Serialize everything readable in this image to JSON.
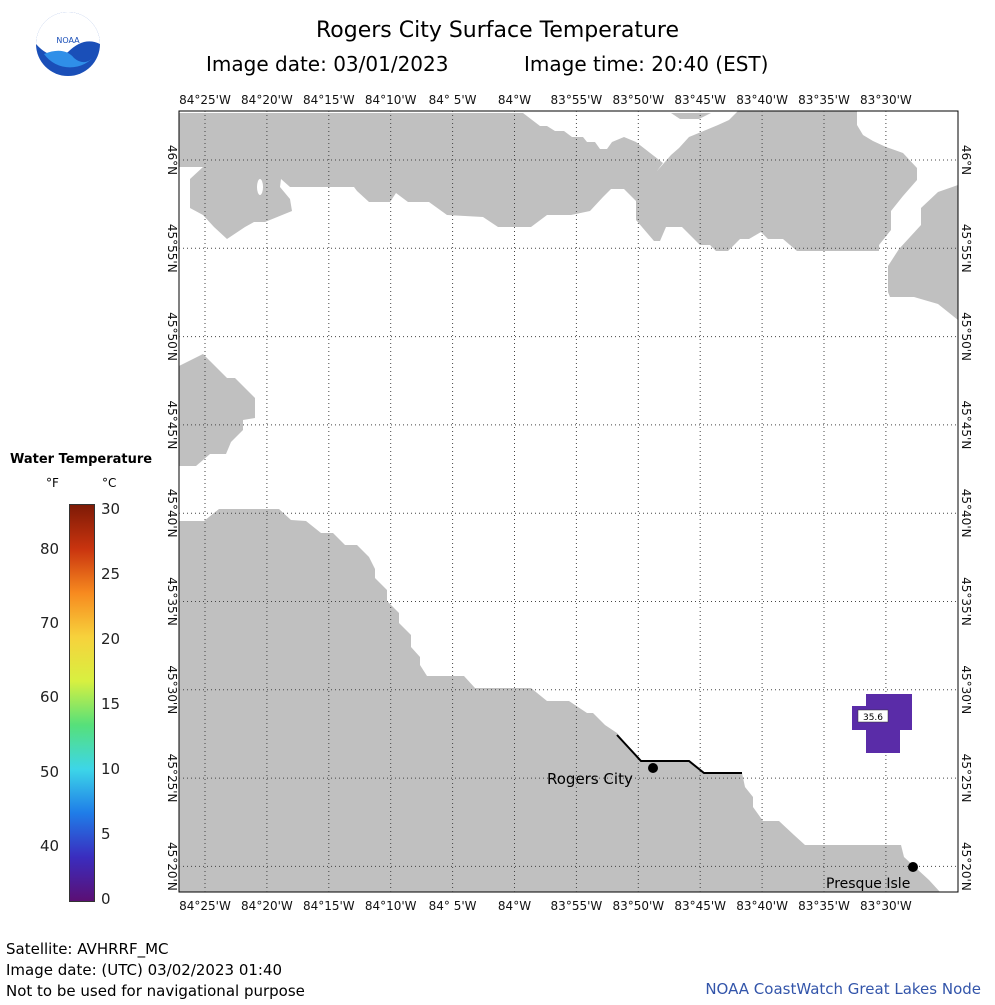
{
  "header": {
    "title": "Rogers City Surface Temperature",
    "image_date": "Image date: 03/01/2023",
    "image_time": "Image time: 20:40 (EST)"
  },
  "logo": {
    "text": "NOAA",
    "icon": "noaa-logo-icon"
  },
  "map": {
    "lon_labels": [
      "84°25'W",
      "84°20'W",
      "84°15'W",
      "84°10'W",
      "84° 5'W",
      "84°W",
      "83°55'W",
      "83°50'W",
      "83°45'W",
      "83°40'W",
      "83°35'W",
      "83°30'W"
    ],
    "lat_labels": [
      "46°N",
      "45°55'N",
      "45°50'N",
      "45°45'N",
      "45°40'N",
      "45°35'N",
      "45°30'N",
      "45°25'N",
      "45°20'N"
    ],
    "places": [
      {
        "name": "Rogers City"
      },
      {
        "name": "Presque Isle"
      }
    ],
    "temperature_reading": "35.6",
    "colors": {
      "land": "#c0c0c0",
      "water": "#ffffff",
      "reading_cell": "#5a2ca8",
      "grid": "#000000"
    }
  },
  "legend": {
    "title": "Water Temperature",
    "unit_f": "°F",
    "unit_c": "°C",
    "f_ticks": [
      "80",
      "70",
      "60",
      "50",
      "40"
    ],
    "c_ticks": [
      "30",
      "25",
      "20",
      "15",
      "10",
      "5",
      "0"
    ],
    "colors": [
      "#5b0f74",
      "#3a2dbf",
      "#1f7de8",
      "#3dd6e8",
      "#56e07a",
      "#d8f040",
      "#f7d23c",
      "#f78a1f",
      "#c9340f",
      "#7e1a06"
    ]
  },
  "footer": {
    "satellite": "Satellite: AVHRRF_MC",
    "utc_date": "Image date: (UTC) 03/02/2023  01:40",
    "disclaimer": "Not to be used for navigational purpose",
    "credit": "NOAA CoastWatch Great Lakes Node"
  }
}
